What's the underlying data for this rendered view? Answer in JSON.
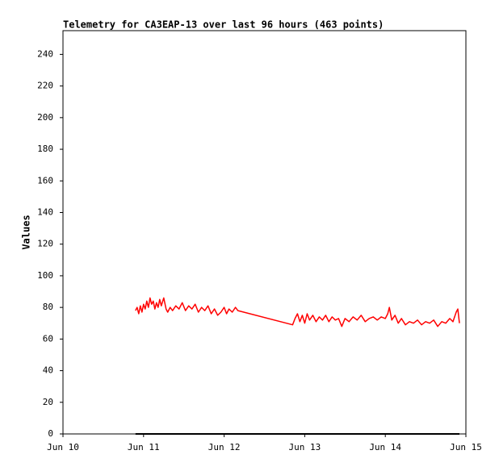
{
  "chart_data": {
    "type": "line",
    "title": "Telemetry for CA3EAP-13 over last 96 hours (463 points)",
    "y_label": "Values",
    "xlim": [
      10,
      15
    ],
    "xticks": [
      {
        "value": 10,
        "label": "Jun 10"
      },
      {
        "value": 11,
        "label": "Jun 11"
      },
      {
        "value": 12,
        "label": "Jun 12"
      },
      {
        "value": 13,
        "label": "Jun 13"
      },
      {
        "value": 14,
        "label": "Jun 14"
      },
      {
        "value": 15,
        "label": "Jun 15"
      }
    ],
    "ylim": [
      0,
      255
    ],
    "yticks": [
      0,
      20,
      40,
      60,
      80,
      100,
      120,
      140,
      160,
      180,
      200,
      220,
      240
    ],
    "grid": false,
    "series": [
      {
        "color": "#ff0000",
        "x": [
          10.9,
          10.92,
          10.94,
          10.96,
          10.98,
          11.0,
          11.02,
          11.04,
          11.06,
          11.08,
          11.1,
          11.12,
          11.14,
          11.16,
          11.18,
          11.2,
          11.22,
          11.25,
          11.28,
          11.3,
          11.33,
          11.36,
          11.4,
          11.44,
          11.48,
          11.52,
          11.56,
          11.6,
          11.64,
          11.68,
          11.72,
          11.76,
          11.8,
          11.84,
          11.88,
          11.92,
          11.96,
          12.0,
          12.03,
          12.06,
          12.1,
          12.14,
          12.17,
          12.85,
          12.88,
          12.91,
          12.94,
          12.97,
          13.0,
          13.03,
          13.06,
          13.1,
          13.14,
          13.18,
          13.22,
          13.26,
          13.3,
          13.34,
          13.38,
          13.42,
          13.46,
          13.5,
          13.55,
          13.6,
          13.65,
          13.7,
          13.75,
          13.8,
          13.85,
          13.9,
          13.95,
          14.0,
          14.03,
          14.05,
          14.08,
          14.12,
          14.16,
          14.2,
          14.25,
          14.3,
          14.35,
          14.4,
          14.45,
          14.5,
          14.55,
          14.6,
          14.65,
          14.7,
          14.75,
          14.8,
          14.84,
          14.88,
          14.9,
          14.92
        ],
        "values": [
          78,
          80,
          76,
          81,
          77,
          82,
          79,
          84,
          80,
          86,
          82,
          84,
          79,
          83,
          80,
          85,
          81,
          86,
          79,
          77,
          80,
          78,
          81,
          79,
          83,
          78,
          81,
          79,
          82,
          77,
          80,
          78,
          81,
          76,
          79,
          75,
          77,
          80,
          76,
          79,
          77,
          80,
          78,
          69,
          73,
          76,
          71,
          75,
          70,
          76,
          72,
          75,
          71,
          74,
          72,
          75,
          71,
          74,
          72,
          73,
          68,
          73,
          71,
          74,
          72,
          75,
          71,
          73,
          74,
          72,
          74,
          73,
          76,
          80,
          72,
          75,
          70,
          73,
          69,
          71,
          70,
          72,
          69,
          71,
          70,
          72,
          68,
          71,
          70,
          73,
          71,
          77,
          79,
          70
        ]
      },
      {
        "color": "#000000",
        "x": [
          10.9,
          14.92
        ],
        "values": [
          0,
          0
        ]
      }
    ]
  }
}
